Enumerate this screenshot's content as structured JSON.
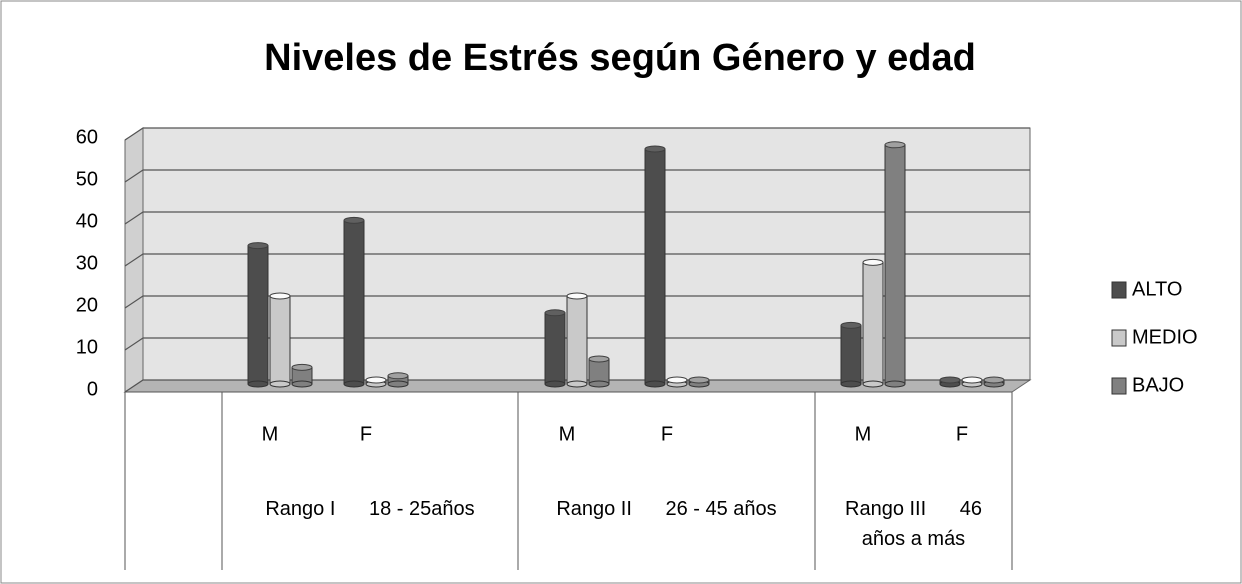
{
  "chart_data": {
    "type": "bar3d",
    "title": "Niveles de Estrés según Género y edad",
    "categories": [
      "M",
      "F",
      "M",
      "F",
      "M",
      "F"
    ],
    "groups": [
      {
        "name": "Rango I",
        "range": "18 - 25años"
      },
      {
        "name": "Rango II",
        "range": "26 - 45 años"
      },
      {
        "name": "Rango III",
        "range": "46 años a más"
      }
    ],
    "series": [
      {
        "name": "ALTO",
        "color": "#4d4d4d",
        "values": [
          32,
          38,
          16,
          55,
          13,
          0
        ]
      },
      {
        "name": "MEDIO",
        "color": "#c9c9c9",
        "values": [
          20,
          0,
          20,
          0,
          28,
          0
        ]
      },
      {
        "name": "BAJO",
        "color": "#808080",
        "values": [
          3,
          1,
          5,
          0,
          56,
          0
        ]
      }
    ],
    "ylim": [
      0,
      60
    ],
    "yticks": [
      0,
      10,
      20,
      30,
      40,
      50,
      60
    ],
    "grid": true,
    "legend": "right"
  }
}
